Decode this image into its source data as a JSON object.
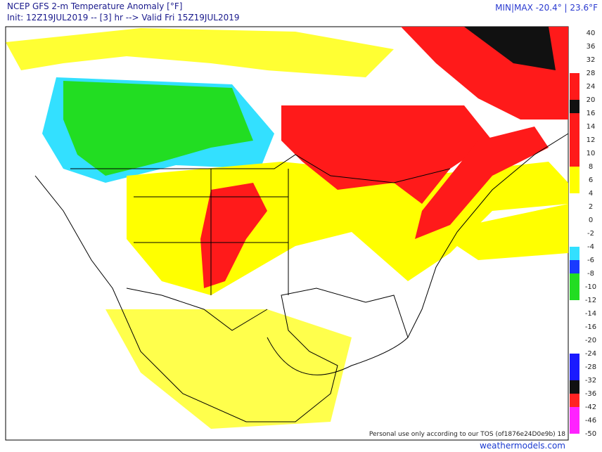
{
  "header": {
    "title": "NCEP GFS 2-m Temperature Anomaly [°F]",
    "init": "Init: 12Z19JUL2019 -- [3] hr --> Valid Fri 15Z19JUL2019",
    "minmax": "MIN|MAX -20.4° | 23.6°F"
  },
  "colorbar": {
    "labels": [
      "40",
      "36",
      "32",
      "28",
      "24",
      "20",
      "16",
      "14",
      "12",
      "10",
      "8",
      "6",
      "4",
      "2",
      "0",
      "-2",
      "-4",
      "-6",
      "-8",
      "-10",
      "-12",
      "-14",
      "-16",
      "-20",
      "-24",
      "-28",
      "-32",
      "-36",
      "-42",
      "-46",
      "-50"
    ],
    "colors": [
      "#ffffff",
      "#ffffff",
      "#ffffff",
      "#ff1a1a",
      "#ff1a1a",
      "#111111",
      "#ff1a1a",
      "#ff1a1a",
      "#ff1a1a",
      "#ff1a1a",
      "#ffff00",
      "#ffff00",
      "#ffffff",
      "#ffffff",
      "#ffffff",
      "#ffffff",
      "#33e0ff",
      "#1a3aff",
      "#22dd22",
      "#22dd22",
      "#ffffff",
      "#ffffff",
      "#ffffff",
      "#ffffff",
      "#1a1aff",
      "#1a1aff",
      "#111111",
      "#ff2222",
      "#ff22ff",
      "#ff22ff"
    ]
  },
  "footer": {
    "tos": "Personal use only according to our TOS (of1876e24D0e9b) 18",
    "site": "weathermodels.com"
  }
}
